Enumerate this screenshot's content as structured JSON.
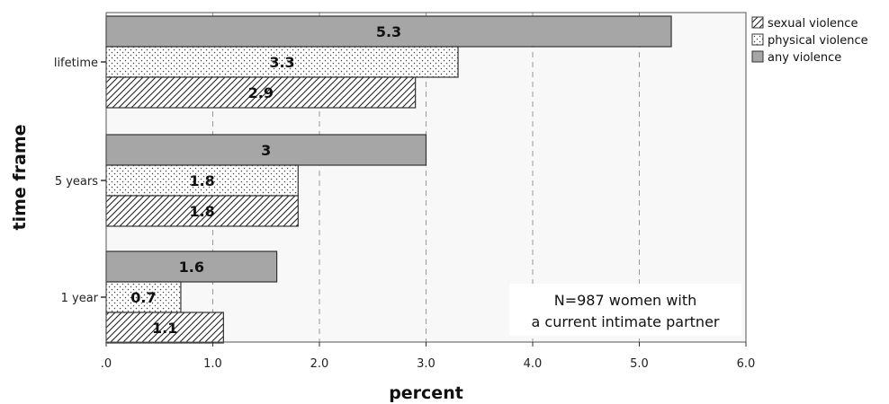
{
  "chart_data": {
    "type": "bar",
    "orientation": "horizontal",
    "title": "",
    "xlabel": "percent",
    "ylabel": "time frame",
    "xlim": [
      0,
      6
    ],
    "x_ticks": [
      ".0",
      "1.0",
      "2.0",
      "3.0",
      "4.0",
      "5.0",
      "6.0"
    ],
    "x_tick_values": [
      0,
      1,
      2,
      3,
      4,
      5,
      6
    ],
    "grid": "vertical dashed",
    "legend_position": "top-right",
    "categories": [
      "lifetime",
      "5 years",
      "1 year"
    ],
    "series": [
      {
        "name": "sexual violence",
        "values": [
          2.9,
          1.8,
          1.1
        ],
        "labels": [
          "2.9",
          "1.8",
          "1.1"
        ],
        "pattern": "diagonal-hatch",
        "color": "#ffffff"
      },
      {
        "name": "physical violence",
        "values": [
          3.3,
          1.8,
          0.7
        ],
        "labels": [
          "3.3",
          "1.8",
          "0.7"
        ],
        "pattern": "dots",
        "color": "#ffffff"
      },
      {
        "name": "any violence",
        "values": [
          5.3,
          3.0,
          1.6
        ],
        "labels": [
          "5.3",
          "3",
          "1.6"
        ],
        "pattern": "solid",
        "color": "#a6a6a6"
      }
    ],
    "annotation": [
      "N=987 women with",
      "a current intimate partner"
    ],
    "colors": {
      "plot_background": "#f8f8f8",
      "solid_fill": "#a6a6a6",
      "stroke": "#333333",
      "grid": "#999999"
    }
  }
}
